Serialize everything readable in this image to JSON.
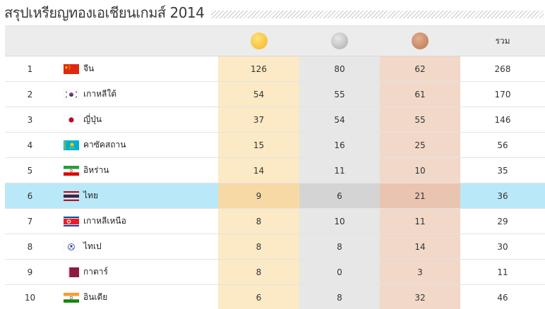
{
  "title": "สรุปเหรียญทองเอเชียนเกมส์ 2014",
  "header": {
    "total_label": "รวม",
    "gold_icon": "gold-medal-icon",
    "silver_icon": "silver-medal-icon",
    "bronze_icon": "bronze-medal-icon"
  },
  "rows": [
    {
      "rank": "1",
      "country": "จีน",
      "flag": "china-flag-icon",
      "gold": "126",
      "silver": "80",
      "bronze": "62",
      "total": "268"
    },
    {
      "rank": "2",
      "country": "เกาหลีใต้",
      "flag": "south-korea-flag-icon",
      "gold": "54",
      "silver": "55",
      "bronze": "61",
      "total": "170"
    },
    {
      "rank": "3",
      "country": "ญี่ปุ่น",
      "flag": "japan-flag-icon",
      "gold": "37",
      "silver": "54",
      "bronze": "55",
      "total": "146"
    },
    {
      "rank": "4",
      "country": "คาซัคสถาน",
      "flag": "kazakhstan-flag-icon",
      "gold": "15",
      "silver": "16",
      "bronze": "25",
      "total": "56"
    },
    {
      "rank": "5",
      "country": "อิหร่าน",
      "flag": "iran-flag-icon",
      "gold": "14",
      "silver": "11",
      "bronze": "10",
      "total": "35"
    },
    {
      "rank": "6",
      "country": "ไทย",
      "flag": "thailand-flag-icon",
      "gold": "9",
      "silver": "6",
      "bronze": "21",
      "total": "36"
    },
    {
      "rank": "7",
      "country": "เกาหลีเหนือ",
      "flag": "north-korea-flag-icon",
      "gold": "8",
      "silver": "10",
      "bronze": "11",
      "total": "29"
    },
    {
      "rank": "8",
      "country": "ไทเป",
      "flag": "chinese-taipei-flag-icon",
      "gold": "8",
      "silver": "8",
      "bronze": "14",
      "total": "30"
    },
    {
      "rank": "9",
      "country": "กาตาร์",
      "flag": "qatar-flag-icon",
      "gold": "8",
      "silver": "0",
      "bronze": "3",
      "total": "11"
    },
    {
      "rank": "10",
      "country": "อินเดีย",
      "flag": "india-flag-icon",
      "gold": "6",
      "silver": "8",
      "bronze": "32",
      "total": "46"
    }
  ],
  "highlight_rank": "6"
}
